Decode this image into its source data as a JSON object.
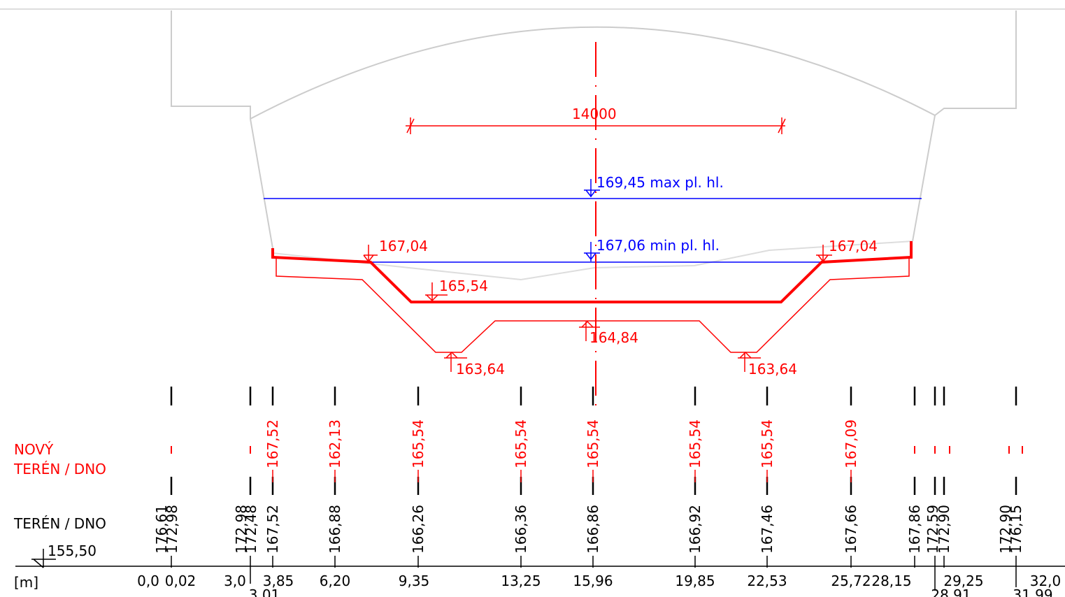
{
  "dimension": "14000",
  "levels": {
    "max": "169,45 max pl. hl.",
    "min": "167,06 min pl. hl.",
    "bank_left": "167,04",
    "bank_right": "167,04",
    "bed": "165,54",
    "center_bottom": "164,84",
    "ditch_left": "163,64",
    "ditch_right": "163,64"
  },
  "rows": {
    "new_terrain_1": "NOVÝ",
    "new_terrain_2": "TERÉN / DNO",
    "terrain": "TERÉN / DNO",
    "datum": "155,50",
    "unit": "[m]"
  },
  "new_terrain": [
    "167,52",
    "162,13",
    "165,54",
    "165,54",
    "165,54",
    "165,54",
    "165,54",
    "167,09"
  ],
  "terrain": [
    "176,61",
    "172,98",
    "172,98",
    "172,48",
    "167,52",
    "166,88",
    "166,26",
    "166,36",
    "166,86",
    "166,92",
    "167,46",
    "167,66",
    "167,86",
    "172,59",
    "172,90",
    "172,90",
    "176,15"
  ],
  "stations": [
    "0,0",
    "0,02",
    "3,0",
    "3,85",
    "3,01",
    "6,20",
    "9,35",
    "13,25",
    "15,96",
    "19,85",
    "22,53",
    "25,72",
    "28,15",
    "28,91",
    "29,25",
    "32,0",
    "31,99"
  ]
}
